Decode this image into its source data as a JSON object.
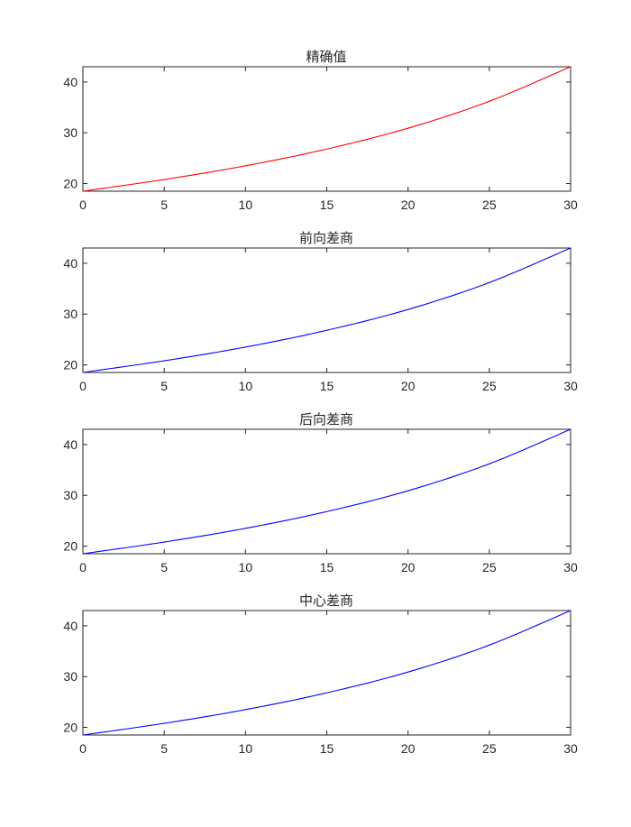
{
  "chart_data": [
    {
      "type": "line",
      "title": "精确值",
      "xlabel": "",
      "ylabel": "",
      "xlim": [
        0,
        30
      ],
      "ylim": [
        18.5,
        43
      ],
      "xticks": [
        0,
        5,
        10,
        15,
        20,
        25,
        30
      ],
      "yticks": [
        20,
        30,
        40
      ],
      "grid": false,
      "series": [
        {
          "color": "#ff0000",
          "x": [
            0,
            5,
            10,
            15,
            20,
            25,
            30
          ],
          "y": [
            18.5,
            20.8,
            23.5,
            26.8,
            30.9,
            36.2,
            43.0
          ]
        }
      ]
    },
    {
      "type": "line",
      "title": "前向差商",
      "xlabel": "",
      "ylabel": "",
      "xlim": [
        0,
        30
      ],
      "ylim": [
        18.5,
        43
      ],
      "xticks": [
        0,
        5,
        10,
        15,
        20,
        25,
        30
      ],
      "yticks": [
        20,
        30,
        40
      ],
      "grid": false,
      "series": [
        {
          "color": "#0000ff",
          "x": [
            0,
            5,
            10,
            15,
            20,
            25,
            30
          ],
          "y": [
            18.5,
            20.8,
            23.5,
            26.8,
            30.9,
            36.2,
            43.0
          ]
        }
      ]
    },
    {
      "type": "line",
      "title": "后向差商",
      "xlabel": "",
      "ylabel": "",
      "xlim": [
        0,
        30
      ],
      "ylim": [
        18.5,
        43
      ],
      "xticks": [
        0,
        5,
        10,
        15,
        20,
        25,
        30
      ],
      "yticks": [
        20,
        30,
        40
      ],
      "grid": false,
      "series": [
        {
          "color": "#0000ff",
          "x": [
            0,
            5,
            10,
            15,
            20,
            25,
            30
          ],
          "y": [
            18.5,
            20.8,
            23.5,
            26.8,
            30.9,
            36.2,
            43.0
          ]
        }
      ]
    },
    {
      "type": "line",
      "title": "中心差商",
      "xlabel": "",
      "ylabel": "",
      "xlim": [
        0,
        30
      ],
      "ylim": [
        18.5,
        43
      ],
      "xticks": [
        0,
        5,
        10,
        15,
        20,
        25,
        30
      ],
      "yticks": [
        20,
        30,
        40
      ],
      "grid": false,
      "series": [
        {
          "color": "#0000ff",
          "x": [
            0,
            5,
            10,
            15,
            20,
            25,
            30
          ],
          "y": [
            18.5,
            20.8,
            23.5,
            26.8,
            30.9,
            36.2,
            43.0
          ]
        }
      ]
    }
  ]
}
